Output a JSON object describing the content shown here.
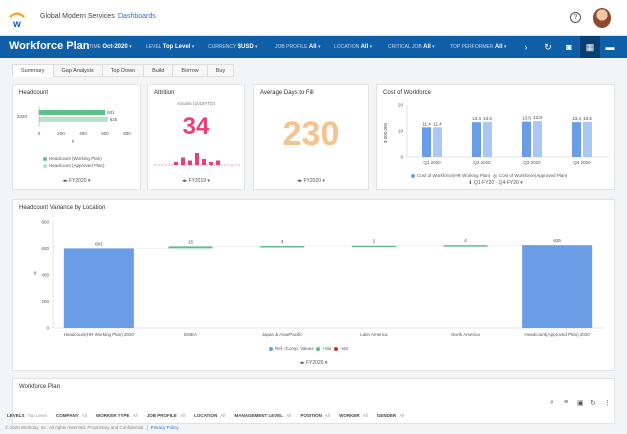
{
  "header": {
    "company": "Global Modern Services",
    "dashboards_link": "Dashboards"
  },
  "navbar": {
    "title": "Workforce Plan",
    "filters": [
      {
        "label": "TIME",
        "value": "Oct-2020"
      },
      {
        "label": "LEVEL",
        "value": "Top Level"
      },
      {
        "label": "CURRENCY",
        "value": "$USD"
      },
      {
        "label": "JOB PROFILE",
        "value": "All"
      },
      {
        "label": "LOCATION",
        "value": "All"
      },
      {
        "label": "CRITICAL JOB",
        "value": "All"
      },
      {
        "label": "TOP PERFORMER",
        "value": "All"
      }
    ]
  },
  "tabs": [
    "Summary",
    "Gap Analysis",
    "Top Down",
    "Build",
    "Borrow",
    "Buy"
  ],
  "headcount": {
    "title": "Headcount",
    "year": "2020",
    "working_value": "601",
    "approved_value": "625",
    "ticks": [
      "0",
      "200",
      "400",
      "600",
      "800"
    ],
    "axis_unit": "#",
    "legend": [
      "Headcount (Working Plan)",
      "Headcount (Approved Plan)"
    ],
    "footer": "FY2020"
  },
  "attrition": {
    "title": "Attrition",
    "subtitle": "Actuals (2019YTD)",
    "value": "34",
    "footer": "FY2019"
  },
  "days_to_fill": {
    "title": "Average Days to Fill",
    "value": "230",
    "footer": "FY2020"
  },
  "cost": {
    "title": "Cost of Workforce",
    "ylabel": "$ 000,000",
    "yticks": [
      "20",
      "10",
      "0"
    ],
    "legend": [
      "Cost of Workforce(HR Working Plan)",
      "Cost of Workforce(Approved Plan)"
    ],
    "footer": "Q1-FY20 - Q4-FY20"
  },
  "variance": {
    "title": "Headcount Variance by Location",
    "yticks": [
      "800",
      "600",
      "400",
      "200",
      "0"
    ],
    "ylabel": "#",
    "legend": [
      "Ref. /Comp. Values",
      "+Var",
      "-Var"
    ],
    "footer": "FY2020"
  },
  "workforce_plan": {
    "title": "Workforce Plan",
    "filters": [
      {
        "label": "LEVELS",
        "value": "Top Level"
      },
      {
        "label": "COMPANY",
        "value": "All"
      },
      {
        "label": "WORKER TYPE",
        "value": "All"
      },
      {
        "label": "JOB PROFILE",
        "value": "All"
      },
      {
        "label": "LOCATION",
        "value": "All"
      },
      {
        "label": "MANAGEMENT LEVEL",
        "value": "All"
      },
      {
        "label": "POSITION",
        "value": "All"
      },
      {
        "label": "WORKER",
        "value": "All"
      },
      {
        "label": "GENDER",
        "value": "All"
      }
    ]
  },
  "footer": {
    "copyright": "© 2020 Workday, Inc. All rights reserved. Proprietary and Confidential.",
    "privacy": "Privacy Policy"
  },
  "colors": {
    "nav_blue": "#0e5ea8",
    "attrition_pink": "#e8417a",
    "days_orange": "#f5c38e",
    "green": "#5fbf8b",
    "light_green": "#b4e4c6",
    "bar_blue": "#6a9de6",
    "light_blue": "#a9c8f2",
    "neg_red": "#c0392b"
  },
  "chart_data": [
    {
      "type": "bar",
      "title": "Headcount",
      "categories": [
        "2020"
      ],
      "series": [
        {
          "name": "Headcount (Working Plan)",
          "values": [
            601
          ]
        },
        {
          "name": "Headcount (Approved Plan)",
          "values": [
            625
          ]
        }
      ],
      "xlabel": "#",
      "xlim": [
        0,
        800
      ]
    },
    {
      "type": "bar",
      "title": "Attrition",
      "values": [
        2,
        5,
        3,
        8,
        4,
        2,
        3
      ],
      "legend": "none"
    },
    {
      "type": "bar",
      "title": "Cost of Workforce",
      "categories": [
        "Q1 2020",
        "Q2 2020",
        "Q3 2020",
        "Q4 2020"
      ],
      "series": [
        {
          "name": "Cost of Workforce(HR Working Plan)",
          "values": [
            11.4,
            13.4,
            13.6,
            13.4
          ]
        },
        {
          "name": "Cost of Workforce(Approved Plan)",
          "values": [
            11.4,
            13.5,
            13.8,
            13.5
          ]
        }
      ],
      "ylabel": "$ 000,000",
      "ylim": [
        0,
        20
      ],
      "legend": "bottom"
    },
    {
      "type": "bar",
      "title": "Headcount Variance by Location",
      "categories": [
        "Headcount(HR Working Plan) 2020",
        "EMEA",
        "Japan & Asia/Pacific",
        "Latin America",
        "North America",
        "Headcount(Approved Plan) 2020"
      ],
      "values": [
        601,
        15,
        3,
        2,
        4,
        625
      ],
      "value_labels": [
        "601",
        "15",
        "3",
        "2",
        "4",
        "625"
      ],
      "ylabel": "#",
      "ylim": [
        0,
        800
      ],
      "legend": "bottom"
    }
  ]
}
